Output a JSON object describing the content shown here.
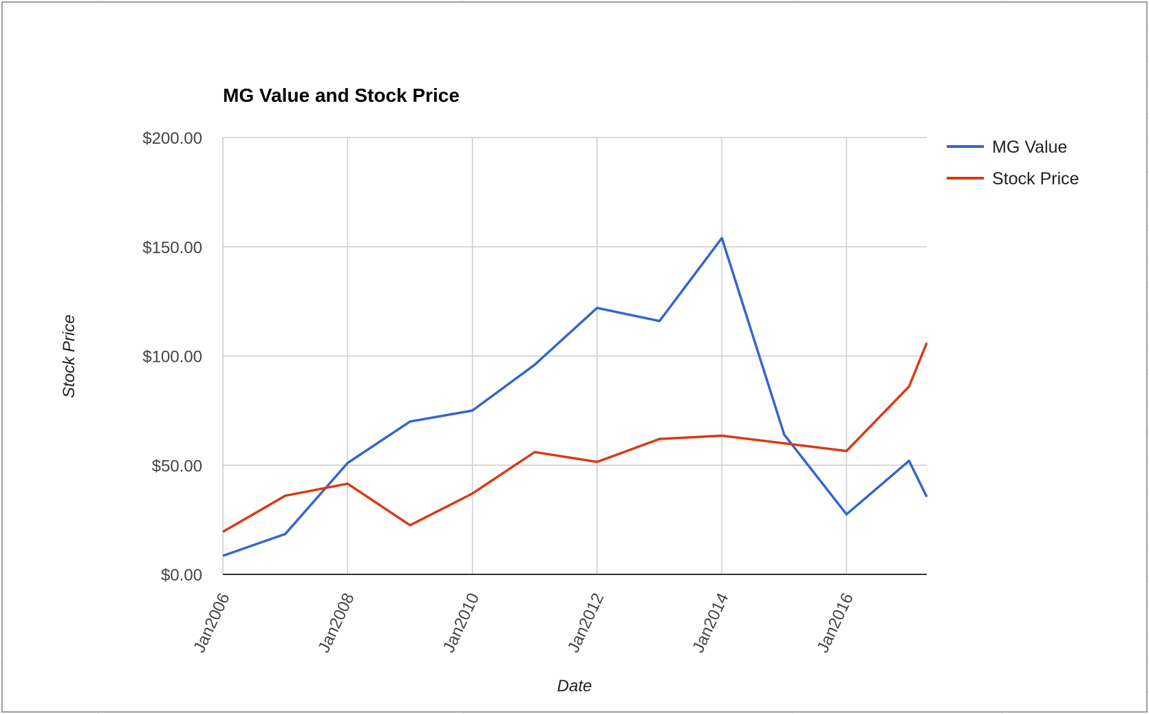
{
  "chart_data": {
    "type": "line",
    "title": "MG Value and Stock Price",
    "xlabel": "Date",
    "ylabel": "Stock Price",
    "x_tick_labels": [
      "Jan2006",
      "Jan2008",
      "Jan2010",
      "Jan2012",
      "Jan2014",
      "Jan2016"
    ],
    "y_tick_labels": [
      "$0.00",
      "$50.00",
      "$100.00",
      "$150.00",
      "$200.00"
    ],
    "ylim": [
      0,
      200
    ],
    "xlim": [
      "2005-12-01",
      "2017-03-15"
    ],
    "grid": true,
    "legend_position": "right",
    "series": [
      {
        "name": "MG Value",
        "color": "#3366cc",
        "points": [
          [
            "2005-12-01",
            8.5
          ],
          [
            "2006-12-01",
            18.5
          ],
          [
            "2007-12-01",
            51
          ],
          [
            "2008-12-01",
            70
          ],
          [
            "2009-12-01",
            75
          ],
          [
            "2010-12-01",
            96
          ],
          [
            "2011-12-01",
            122
          ],
          [
            "2012-12-01",
            116
          ],
          [
            "2013-12-01",
            154
          ],
          [
            "2014-12-01",
            64
          ],
          [
            "2015-12-01",
            27.5
          ],
          [
            "2016-12-01",
            52
          ],
          [
            "2017-03-15",
            35.5
          ]
        ]
      },
      {
        "name": "Stock Price",
        "color": "#dc3912",
        "points": [
          [
            "2005-12-01",
            19.5
          ],
          [
            "2006-12-01",
            36
          ],
          [
            "2007-12-01",
            41.5
          ],
          [
            "2008-12-01",
            22.5
          ],
          [
            "2009-12-01",
            37
          ],
          [
            "2010-12-01",
            56
          ],
          [
            "2011-12-01",
            51.5
          ],
          [
            "2012-12-01",
            62
          ],
          [
            "2013-12-01",
            63.5
          ],
          [
            "2014-12-01",
            60
          ],
          [
            "2015-12-01",
            56.5
          ],
          [
            "2016-12-01",
            86
          ],
          [
            "2017-03-15",
            106
          ]
        ]
      }
    ]
  }
}
